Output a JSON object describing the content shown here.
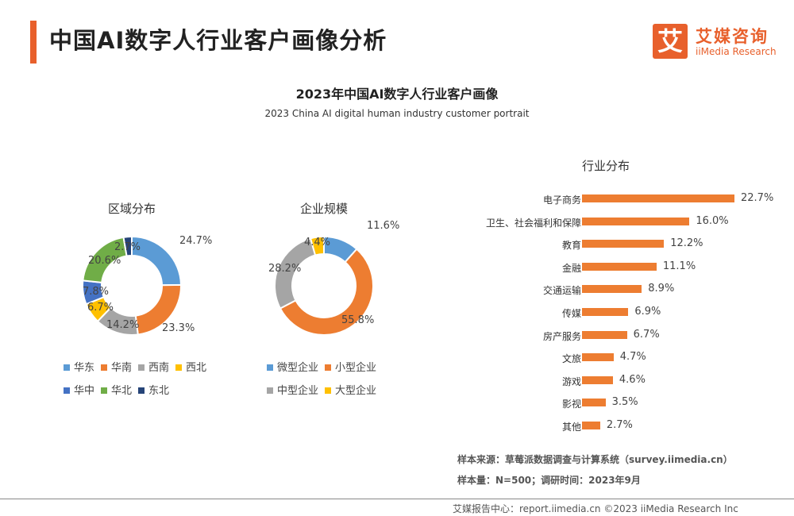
{
  "header": {
    "title": "中国AI数字人行业客户画像分析",
    "logo_mark": "艾",
    "logo_cn": "艾媒咨询",
    "logo_en": "iiMedia Research"
  },
  "chart_title": "2023年中国AI数字人行业客户画像",
  "chart_subtitle": "2023 China AI digital human industry customer portrait",
  "chart_data": [
    {
      "type": "pie",
      "title": "区域分布",
      "categories": [
        "华东",
        "华南",
        "西南",
        "西北",
        "华中",
        "华北",
        "东北"
      ],
      "values": [
        24.7,
        23.3,
        14.2,
        6.7,
        7.8,
        20.6,
        2.7
      ],
      "labels": [
        "24.7%",
        "23.3%",
        "14.2%",
        "6.7%",
        "7.8%",
        "20.6%",
        "2.7%"
      ],
      "colors": [
        "#5b9bd5",
        "#ed7d31",
        "#a5a5a5",
        "#ffc000",
        "#4472c4",
        "#70ad47",
        "#264478"
      ],
      "donut": true,
      "legend": "bottom"
    },
    {
      "type": "pie",
      "title": "企业规模",
      "categories": [
        "微型企业",
        "小型企业",
        "中型企业",
        "大型企业"
      ],
      "values": [
        11.6,
        55.8,
        28.2,
        4.4
      ],
      "labels": [
        "11.6%",
        "55.8%",
        "28.2%",
        "4.4%"
      ],
      "colors": [
        "#5b9bd5",
        "#ed7d31",
        "#a5a5a5",
        "#ffc000"
      ],
      "donut": true,
      "legend": "bottom"
    },
    {
      "type": "bar",
      "orientation": "horizontal",
      "title": "行业分布",
      "categories": [
        "电子商务",
        "卫生、社会福利和保障",
        "教育",
        "金融",
        "交通运输",
        "传媒",
        "房产服务",
        "文旅",
        "游戏",
        "影视",
        "其他"
      ],
      "values": [
        22.7,
        16.0,
        12.2,
        11.1,
        8.9,
        6.9,
        6.7,
        4.7,
        4.6,
        3.5,
        2.7
      ],
      "labels": [
        "22.7%",
        "16.0%",
        "12.2%",
        "11.1%",
        "8.9%",
        "6.9%",
        "6.7%",
        "4.7%",
        "4.6%",
        "3.5%",
        "2.7%"
      ],
      "color": "#ed7d31"
    }
  ],
  "notes": {
    "source": "样本来源：草莓派数据调查与计算系统（survey.iimedia.cn）",
    "sample": "样本量：N=500；调研时间：2023年9月"
  },
  "footer": "艾媒报告中心：report.iimedia.cn  ©2023 iiMedia Research Inc"
}
